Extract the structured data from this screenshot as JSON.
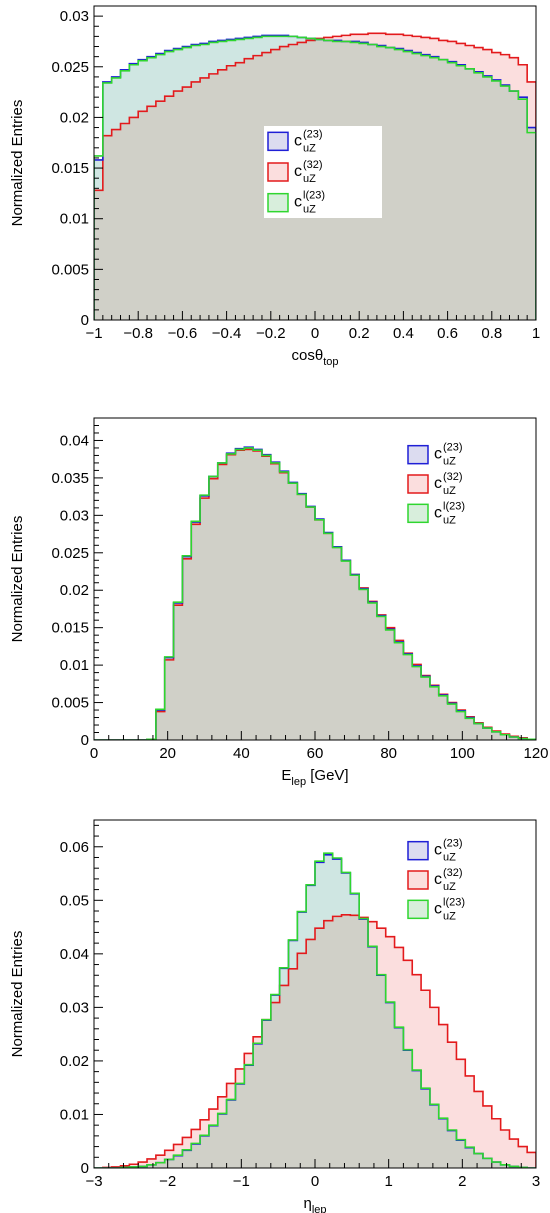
{
  "colors": {
    "c23_line": "#1f1fd6",
    "c23_fill": "#dcdcf0",
    "c32_line": "#e31a1c",
    "c32_fill": "#fbdede",
    "cl23_line": "#2fd62f",
    "cl23_fill": "#d8eedc",
    "overlap_fill": "#d0d0c8",
    "teal_fill": "#cfe6e2"
  },
  "legend": [
    {
      "key": "c23",
      "base": "c",
      "sub": "uZ",
      "sup": "(23)"
    },
    {
      "key": "c32",
      "base": "c",
      "sub": "uZ",
      "sup": "(32)"
    },
    {
      "key": "cl23",
      "base": "c",
      "sub": "uZ",
      "sup": "l(23)"
    }
  ],
  "chart_data": [
    {
      "type": "histogram",
      "xlabel": {
        "base": "cosθ",
        "sub": "top"
      },
      "ylabel": "Normalized Entries",
      "xlim": [
        -1,
        1
      ],
      "ylim": [
        0,
        0.031
      ],
      "xticks": [
        -1,
        -0.8,
        -0.6,
        -0.4,
        -0.2,
        0,
        0.2,
        0.4,
        0.6,
        0.8,
        1
      ],
      "xtick_labels": [
        "−1",
        "−0.8",
        "−0.6",
        "−0.4",
        "−0.2",
        "0",
        "0.2",
        "0.4",
        "0.6",
        "0.8",
        "1"
      ],
      "yticks": [
        0,
        0.005,
        0.01,
        0.015,
        0.02,
        0.025,
        0.03
      ],
      "ytick_labels": [
        "0",
        "0.005",
        "0.01",
        "0.015",
        "0.02",
        "0.025",
        "0.03"
      ],
      "bins": 50,
      "legend_position": "center",
      "series": [
        {
          "key": "c23",
          "name": "c_uZ^(23)",
          "values": [
            0.0158,
            0.0235,
            0.024,
            0.0247,
            0.0253,
            0.0257,
            0.026,
            0.0263,
            0.0266,
            0.0268,
            0.027,
            0.0272,
            0.0273,
            0.0275,
            0.0276,
            0.0277,
            0.0278,
            0.0279,
            0.028,
            0.0281,
            0.0281,
            0.0281,
            0.028,
            0.0279,
            0.0278,
            0.0277,
            0.0276,
            0.0276,
            0.0275,
            0.0275,
            0.0274,
            0.0272,
            0.0271,
            0.0269,
            0.0268,
            0.0266,
            0.0264,
            0.0262,
            0.026,
            0.0257,
            0.0255,
            0.0252,
            0.0248,
            0.0245,
            0.0241,
            0.0237,
            0.0232,
            0.0226,
            0.022,
            0.019
          ]
        },
        {
          "key": "c32",
          "name": "c_uZ^(32)",
          "values": [
            0.0128,
            0.0182,
            0.0188,
            0.0194,
            0.02,
            0.0206,
            0.0211,
            0.0216,
            0.0221,
            0.0226,
            0.023,
            0.0235,
            0.0239,
            0.0243,
            0.0247,
            0.0251,
            0.0254,
            0.0258,
            0.0261,
            0.0264,
            0.0267,
            0.027,
            0.0272,
            0.0274,
            0.0276,
            0.0278,
            0.0279,
            0.028,
            0.0281,
            0.0282,
            0.0282,
            0.0283,
            0.0283,
            0.0282,
            0.0282,
            0.0281,
            0.028,
            0.0279,
            0.0278,
            0.0276,
            0.0275,
            0.0273,
            0.0271,
            0.0269,
            0.0267,
            0.0264,
            0.0262,
            0.0259,
            0.0252,
            0.0235
          ]
        },
        {
          "key": "cl23",
          "name": "c_uZ^l(23)",
          "values": [
            0.0162,
            0.0234,
            0.0239,
            0.0246,
            0.0252,
            0.0256,
            0.0259,
            0.0262,
            0.0265,
            0.0267,
            0.0269,
            0.0271,
            0.0272,
            0.0274,
            0.0275,
            0.0276,
            0.0277,
            0.0278,
            0.0279,
            0.028,
            0.028,
            0.028,
            0.028,
            0.0279,
            0.0278,
            0.0277,
            0.0276,
            0.0275,
            0.0275,
            0.0274,
            0.0273,
            0.0272,
            0.027,
            0.0269,
            0.0267,
            0.0265,
            0.0263,
            0.0261,
            0.0259,
            0.0257,
            0.0254,
            0.0251,
            0.0248,
            0.0244,
            0.024,
            0.0236,
            0.0231,
            0.0226,
            0.0218,
            0.0185
          ]
        }
      ]
    },
    {
      "type": "histogram",
      "xlabel": {
        "base": "E",
        "sub": "lep",
        "suffix": " [GeV]"
      },
      "ylabel": "Normalized Entries",
      "xlim": [
        0,
        120
      ],
      "ylim": [
        0,
        0.043
      ],
      "xticks": [
        0,
        20,
        40,
        60,
        80,
        100,
        120
      ],
      "xtick_labels": [
        "0",
        "20",
        "40",
        "60",
        "80",
        "100",
        "120"
      ],
      "yticks": [
        0,
        0.005,
        0.01,
        0.015,
        0.02,
        0.025,
        0.03,
        0.035,
        0.04
      ],
      "ytick_labels": [
        "0",
        "0.005",
        "0.01",
        "0.015",
        "0.02",
        "0.025",
        "0.03",
        "0.035",
        "0.04"
      ],
      "bins": 50,
      "legend_position": "top-right",
      "series": [
        {
          "key": "c23",
          "name": "c_uZ^(23)",
          "values": [
            0,
            0,
            0,
            0,
            0,
            0,
            0.0001,
            0.004,
            0.011,
            0.0183,
            0.0245,
            0.0291,
            0.0326,
            0.0352,
            0.037,
            0.0383,
            0.0389,
            0.0391,
            0.0388,
            0.0381,
            0.0371,
            0.0359,
            0.0344,
            0.0329,
            0.0312,
            0.0295,
            0.0277,
            0.0258,
            0.024,
            0.0221,
            0.0202,
            0.0184,
            0.0166,
            0.0148,
            0.0131,
            0.0115,
            0.0099,
            0.0085,
            0.0072,
            0.006,
            0.0049,
            0.0039,
            0.003,
            0.0022,
            0.0016,
            0.0011,
            0.0007,
            0.0004,
            0.0002,
            0.0001
          ]
        },
        {
          "key": "c32",
          "name": "c_uZ^(32)",
          "values": [
            0,
            0,
            0,
            0,
            0,
            0,
            0.0001,
            0.0038,
            0.0107,
            0.018,
            0.0242,
            0.0288,
            0.0323,
            0.0349,
            0.0368,
            0.0381,
            0.0387,
            0.0388,
            0.0386,
            0.0379,
            0.0369,
            0.0357,
            0.0343,
            0.0328,
            0.0311,
            0.0294,
            0.0276,
            0.0258,
            0.024,
            0.0221,
            0.0203,
            0.0185,
            0.0167,
            0.015,
            0.0133,
            0.0116,
            0.0101,
            0.0086,
            0.0073,
            0.0061,
            0.005,
            0.004,
            0.0031,
            0.0023,
            0.0017,
            0.0012,
            0.0008,
            0.0005,
            0.0003,
            0.0001
          ]
        },
        {
          "key": "cl23",
          "name": "c_uZ^l(23)",
          "values": [
            0,
            0,
            0,
            0,
            0,
            0,
            0.0001,
            0.0041,
            0.0111,
            0.0184,
            0.0246,
            0.0292,
            0.0327,
            0.0352,
            0.037,
            0.0382,
            0.0388,
            0.039,
            0.0387,
            0.038,
            0.037,
            0.0358,
            0.0343,
            0.0328,
            0.0311,
            0.0294,
            0.0276,
            0.0257,
            0.0239,
            0.022,
            0.0201,
            0.0183,
            0.0165,
            0.0147,
            0.013,
            0.0114,
            0.0098,
            0.0084,
            0.0071,
            0.0059,
            0.0048,
            0.0038,
            0.0029,
            0.0022,
            0.0016,
            0.0011,
            0.0007,
            0.0004,
            0.0002,
            0.0001
          ]
        }
      ]
    },
    {
      "type": "histogram",
      "xlabel": {
        "base": "η",
        "sub": "lep"
      },
      "ylabel": "Normalized Entries",
      "xlim": [
        -3,
        3
      ],
      "ylim": [
        0,
        0.065
      ],
      "xticks": [
        -3,
        -2,
        -1,
        0,
        1,
        2,
        3
      ],
      "xtick_labels": [
        "−3",
        "−2",
        "−1",
        "0",
        "1",
        "2",
        "3"
      ],
      "yticks": [
        0,
        0.01,
        0.02,
        0.03,
        0.04,
        0.05,
        0.06
      ],
      "ytick_labels": [
        "0",
        "0.01",
        "0.02",
        "0.03",
        "0.04",
        "0.05",
        "0.06"
      ],
      "bins": 50,
      "legend_position": "top-right",
      "series": [
        {
          "key": "c23",
          "name": "c_uZ^(23)",
          "values": [
            0.0,
            0.0,
            0.0,
            0.0001,
            0.0002,
            0.0003,
            0.0006,
            0.001,
            0.0016,
            0.0023,
            0.0033,
            0.0045,
            0.006,
            0.0079,
            0.0101,
            0.0127,
            0.0157,
            0.0192,
            0.0232,
            0.0276,
            0.0323,
            0.0373,
            0.0425,
            0.0478,
            0.0528,
            0.0571,
            0.0585,
            0.0577,
            0.0551,
            0.0512,
            0.0465,
            0.0413,
            0.036,
            0.0309,
            0.0262,
            0.022,
            0.0182,
            0.0148,
            0.0118,
            0.0092,
            0.007,
            0.0052,
            0.0038,
            0.0027,
            0.0018,
            0.0011,
            0.0006,
            0.0003,
            0.0001,
            0.0
          ]
        },
        {
          "key": "c32",
          "name": "c_uZ^(32)",
          "values": [
            0.0,
            0.0001,
            0.0002,
            0.0004,
            0.0007,
            0.0011,
            0.0017,
            0.0024,
            0.0033,
            0.0044,
            0.0057,
            0.0072,
            0.009,
            0.011,
            0.0133,
            0.0158,
            0.0185,
            0.0214,
            0.0245,
            0.0277,
            0.0309,
            0.0341,
            0.0372,
            0.0401,
            0.0427,
            0.0448,
            0.0462,
            0.047,
            0.0473,
            0.0472,
            0.0468,
            0.046,
            0.0448,
            0.0432,
            0.0412,
            0.0388,
            0.0361,
            0.0332,
            0.03,
            0.0268,
            0.0235,
            0.0203,
            0.0172,
            0.0143,
            0.0116,
            0.0092,
            0.0071,
            0.0054,
            0.004,
            0.0029
          ]
        },
        {
          "key": "cl23",
          "name": "c_uZ^l(23)",
          "values": [
            0.0,
            0.0,
            0.0,
            0.0001,
            0.0002,
            0.0003,
            0.0006,
            0.001,
            0.0016,
            0.0024,
            0.0034,
            0.0046,
            0.0061,
            0.008,
            0.0102,
            0.0128,
            0.0158,
            0.0193,
            0.0233,
            0.0277,
            0.0324,
            0.0374,
            0.0426,
            0.0479,
            0.0529,
            0.0573,
            0.0588,
            0.0579,
            0.0552,
            0.0513,
            0.0466,
            0.0414,
            0.0361,
            0.031,
            0.0263,
            0.0221,
            0.0183,
            0.0149,
            0.0119,
            0.0093,
            0.0071,
            0.0053,
            0.0039,
            0.0027,
            0.0018,
            0.0011,
            0.0006,
            0.0003,
            0.0001,
            0.0
          ]
        }
      ]
    }
  ]
}
